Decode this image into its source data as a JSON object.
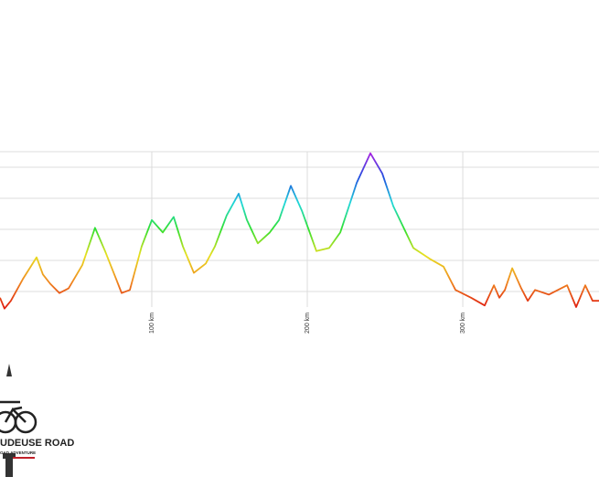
{
  "chart_data": {
    "type": "line",
    "x": [
      2.4,
      5.3,
      9.4,
      17.1,
      25.9,
      30.0,
      34.7,
      40.6,
      46.5,
      55.3,
      63.5,
      70.0,
      75.9,
      80.6,
      85.9,
      93.5,
      100.0,
      107.1,
      114.1,
      120.0,
      127.1,
      134.7,
      140.6,
      148.2,
      155.9,
      161.2,
      168.2,
      175.9,
      181.8,
      189.4,
      196.5,
      205.9,
      214.1,
      221.2,
      231.8,
      240.6,
      248.2,
      255.3,
      268.2,
      278.8,
      287.6,
      295.3,
      305.3,
      314.1,
      320.0,
      323.5,
      327.1,
      331.8,
      337.6,
      341.8,
      346.5,
      355.3,
      361.2,
      367.1,
      372.9,
      378.8,
      383.5,
      387.6
    ],
    "values": [
      0.6,
      -0.1,
      0.4,
      1.8,
      3.2,
      2.1,
      1.5,
      0.9,
      1.2,
      2.7,
      5.1,
      3.6,
      2.1,
      0.9,
      1.1,
      3.9,
      5.6,
      4.8,
      5.8,
      3.9,
      2.2,
      2.8,
      3.9,
      5.9,
      7.3,
      5.6,
      4.1,
      4.8,
      5.6,
      7.8,
      6.2,
      3.6,
      3.8,
      4.8,
      8.0,
      9.9,
      8.6,
      6.5,
      3.8,
      3.1,
      2.6,
      1.1,
      0.6,
      0.1,
      1.4,
      0.6,
      1.1,
      2.5,
      1.2,
      0.4,
      1.1,
      0.8,
      1.1,
      1.4,
      0,
      1.4,
      0.4,
      0.4
    ],
    "colorscale": [
      "#e02010",
      "#f08a20",
      "#e8e020",
      "#30e030",
      "#20d8d8",
      "#2050e0",
      "#b020e0"
    ],
    "xlim": [
      2.4,
      387.6
    ],
    "xticks": [
      {
        "value": 100,
        "label": "100 km"
      },
      {
        "value": 200,
        "label": "200 km"
      },
      {
        "value": 300,
        "label": "300 km"
      }
    ],
    "ylim": [
      -1,
      10
    ],
    "yticks": [
      1,
      3,
      5,
      7,
      9
    ],
    "grid": true
  },
  "logo": {
    "title": "UDEUSE ROAD",
    "subtitle": "OAD ADVENTURE"
  }
}
